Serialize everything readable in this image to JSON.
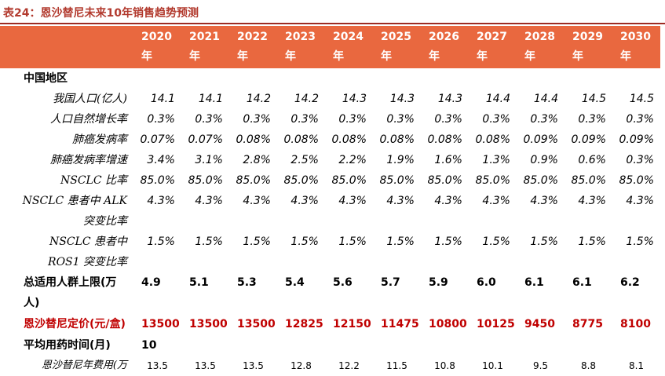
{
  "title": "表24：恩沙替尼未来10年销售趋势预测",
  "table": {
    "header": [
      {
        "year": "2020",
        "unit": "年"
      },
      {
        "year": "2021",
        "unit": "年"
      },
      {
        "year": "2022",
        "unit": "年"
      },
      {
        "year": "2023",
        "unit": "年"
      },
      {
        "year": "2024",
        "unit": "年"
      },
      {
        "year": "2025",
        "unit": "年"
      },
      {
        "year": "2026",
        "unit": "年"
      },
      {
        "year": "2027",
        "unit": "年"
      },
      {
        "year": "2028",
        "unit": "年"
      },
      {
        "year": "2029",
        "unit": "年"
      },
      {
        "year": "2030",
        "unit": "年"
      }
    ],
    "rows": [
      {
        "label": [
          "中国地区"
        ],
        "values": []
      },
      {
        "label": [
          "我国人口(亿人)"
        ],
        "values": [
          "14.1",
          "14.1",
          "14.2",
          "14.2",
          "14.3",
          "14.3",
          "14.3",
          "14.4",
          "14.4",
          "14.5",
          "14.5"
        ]
      },
      {
        "label": [
          "人口自然增长率"
        ],
        "values": [
          "0.3%",
          "0.3%",
          "0.3%",
          "0.3%",
          "0.3%",
          "0.3%",
          "0.3%",
          "0.3%",
          "0.3%",
          "0.3%",
          "0.3%"
        ]
      },
      {
        "label": [
          "肺癌发病率"
        ],
        "values": [
          "0.07%",
          "0.07%",
          "0.08%",
          "0.08%",
          "0.08%",
          "0.08%",
          "0.08%",
          "0.08%",
          "0.09%",
          "0.09%",
          "0.09%"
        ]
      },
      {
        "label": [
          "肺癌发病率增速"
        ],
        "values": [
          "3.4%",
          "3.1%",
          "2.8%",
          "2.5%",
          "2.2%",
          "1.9%",
          "1.6%",
          "1.3%",
          "0.9%",
          "0.6%",
          "0.3%"
        ]
      },
      {
        "label": [
          "NSCLC 比率"
        ],
        "values": [
          "85.0%",
          "85.0%",
          "85.0%",
          "85.0%",
          "85.0%",
          "85.0%",
          "85.0%",
          "85.0%",
          "85.0%",
          "85.0%",
          "85.0%"
        ]
      },
      {
        "label": [
          "NSCLC 患者中 ALK",
          "突变比率"
        ],
        "values": [
          "4.3%",
          "4.3%",
          "4.3%",
          "4.3%",
          "4.3%",
          "4.3%",
          "4.3%",
          "4.3%",
          "4.3%",
          "4.3%",
          "4.3%"
        ]
      },
      {
        "label": [
          "NSCLC 患者中",
          "ROS1 突变比率"
        ],
        "values": [
          "1.5%",
          "1.5%",
          "1.5%",
          "1.5%",
          "1.5%",
          "1.5%",
          "1.5%",
          "1.5%",
          "1.5%",
          "1.5%",
          "1.5%"
        ]
      },
      {
        "label": [
          "总适用人群上限(万",
          "人)"
        ],
        "values": [
          "4.9",
          "5.1",
          "5.3",
          "5.4",
          "5.6",
          "5.7",
          "5.9",
          "6.0",
          "6.1",
          "6.1",
          "6.2"
        ]
      },
      {
        "label": [
          "恩沙替尼定价(元/盒)"
        ],
        "values": [
          "13500",
          "13500",
          "13500",
          "12825",
          "12150",
          "11475",
          "10800",
          "10125",
          "9450",
          "8775",
          "8100"
        ]
      },
      {
        "label": [
          "平均用药时间(月)"
        ],
        "values": [
          "10"
        ]
      },
      {
        "label": [
          "恩沙替尼年费用(万"
        ],
        "values": [
          "13.5",
          "13.5",
          "13.5",
          "12.8",
          "12.2",
          "11.5",
          "10.8",
          "10.1",
          "9.5",
          "8.8",
          "8.1"
        ]
      }
    ]
  }
}
